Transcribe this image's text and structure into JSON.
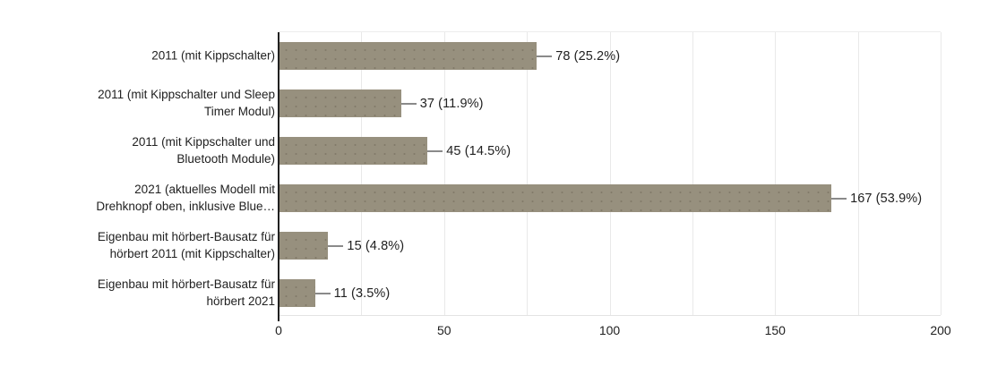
{
  "chart_data": {
    "type": "bar",
    "orientation": "horizontal",
    "title": "",
    "xlabel": "",
    "ylabel": "",
    "categories": [
      "2011 (mit Kippschalter)",
      "2011 (mit Kippschalter und Sleep Timer Modul)",
      "2011 (mit Kippschalter und Bluetooth Module)",
      "2021 (aktuelles Modell mit Drehknopf oben, inklusive Blue…",
      "Eigenbau mit hörbert-Bausatz für hörbert 2011 (mit Kippschalter)",
      "Eigenbau mit hörbert-Bausatz für hörbert 2021"
    ],
    "category_label_lines": [
      [
        "2011 (mit Kippschalter)"
      ],
      [
        "2011 (mit Kippschalter und Sleep",
        "Timer Modul)"
      ],
      [
        "2011 (mit Kippschalter und",
        "Bluetooth Module)"
      ],
      [
        "2021 (aktuelles Modell mit",
        "Drehknopf oben, inklusive Blue…"
      ],
      [
        "Eigenbau mit hörbert-Bausatz für",
        "hörbert 2011 (mit Kippschalter)"
      ],
      [
        "Eigenbau mit hörbert-Bausatz für",
        "hörbert 2021"
      ]
    ],
    "values": [
      78,
      37,
      45,
      167,
      15,
      11
    ],
    "value_labels": [
      "78 (25.2%)",
      "37 (11.9%)",
      "45 (14.5%)",
      "167 (53.9%)",
      "15 (4.8%)",
      "11 (3.5%)"
    ],
    "xlim": [
      0,
      200
    ],
    "xticks": [
      0,
      50,
      100,
      150,
      200
    ],
    "xtick_labels": [
      "0",
      "50",
      "100",
      "150",
      "200"
    ],
    "minor_gridline_step": 25,
    "grid": true,
    "legend": false,
    "colors": {
      "bar": "#97907E",
      "axis": "#212121",
      "gridline": "#e9e9e9",
      "connector": "#8a8a8a",
      "text": "#212121"
    }
  }
}
